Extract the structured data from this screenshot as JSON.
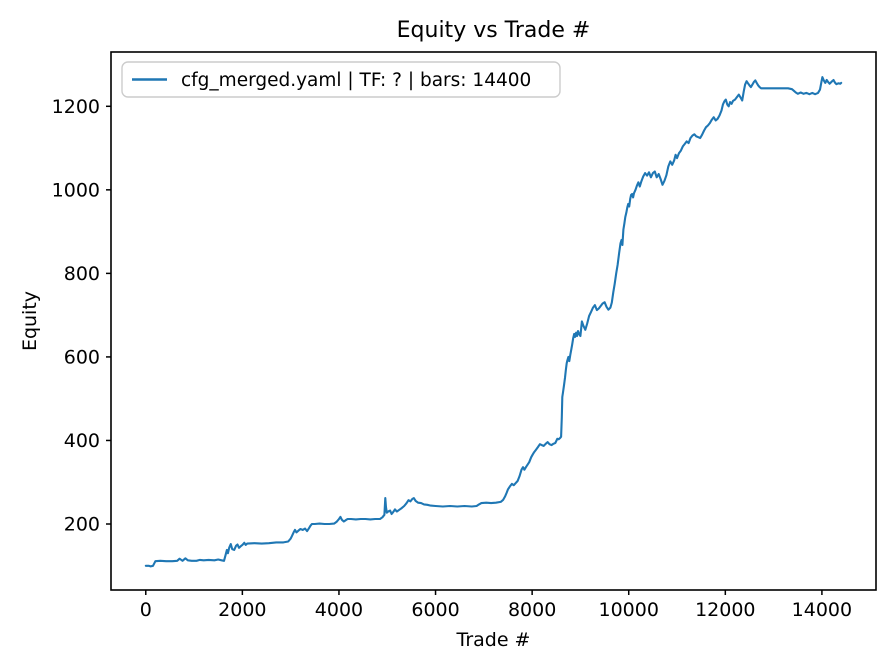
{
  "figure": {
    "background": "#ffffff",
    "spine_color": "#000000",
    "text_color": "#000000"
  },
  "legend": {
    "label": "cfg_merged.yaml | TF: ? | bars: 14400",
    "border_color": "#cccccc",
    "fill_color": "#ffffff",
    "position": "upper left"
  },
  "chart_data": {
    "type": "line",
    "title": "Equity vs Trade #",
    "xlabel": "Trade #",
    "ylabel": "Equity",
    "xlim": [
      -720,
      15120
    ],
    "ylim": [
      42,
      1330
    ],
    "xticks": [
      0,
      2000,
      4000,
      6000,
      8000,
      10000,
      12000,
      14000
    ],
    "yticks": [
      200,
      400,
      600,
      800,
      1000,
      1200
    ],
    "grid": false,
    "legend_position": "upper left",
    "series": [
      {
        "name": "cfg_merged.yaml | TF: ? | bars: 14400",
        "color": "#1f77b4",
        "line_width": 2.1,
        "points": [
          [
            0,
            100
          ],
          [
            60,
            100
          ],
          [
            100,
            98.5
          ],
          [
            150,
            100
          ],
          [
            200,
            111
          ],
          [
            300,
            112
          ],
          [
            420,
            111
          ],
          [
            550,
            111
          ],
          [
            650,
            112
          ],
          [
            700,
            117
          ],
          [
            760,
            112
          ],
          [
            820,
            118
          ],
          [
            870,
            113
          ],
          [
            950,
            112
          ],
          [
            1050,
            112
          ],
          [
            1120,
            114
          ],
          [
            1200,
            113
          ],
          [
            1300,
            114
          ],
          [
            1420,
            113
          ],
          [
            1500,
            115
          ],
          [
            1570,
            113
          ],
          [
            1620,
            112
          ],
          [
            1650,
            125
          ],
          [
            1680,
            138
          ],
          [
            1700,
            130
          ],
          [
            1730,
            144
          ],
          [
            1760,
            152
          ],
          [
            1790,
            140
          ],
          [
            1830,
            138
          ],
          [
            1870,
            148
          ],
          [
            1900,
            151
          ],
          [
            1930,
            143
          ],
          [
            1970,
            147
          ],
          [
            2000,
            150
          ],
          [
            2040,
            155
          ],
          [
            2070,
            150
          ],
          [
            2100,
            153
          ],
          [
            2250,
            154
          ],
          [
            2400,
            153
          ],
          [
            2550,
            154
          ],
          [
            2700,
            156
          ],
          [
            2850,
            156
          ],
          [
            2950,
            158
          ],
          [
            3000,
            165
          ],
          [
            3030,
            172
          ],
          [
            3060,
            180
          ],
          [
            3090,
            186
          ],
          [
            3120,
            180
          ],
          [
            3160,
            184
          ],
          [
            3200,
            188
          ],
          [
            3250,
            186
          ],
          [
            3300,
            189
          ],
          [
            3340,
            183
          ],
          [
            3380,
            190
          ],
          [
            3410,
            196
          ],
          [
            3440,
            200
          ],
          [
            3500,
            200
          ],
          [
            3600,
            201
          ],
          [
            3700,
            200
          ],
          [
            3800,
            200
          ],
          [
            3900,
            201
          ],
          [
            3950,
            205
          ],
          [
            4000,
            212
          ],
          [
            4030,
            217
          ],
          [
            4060,
            210
          ],
          [
            4100,
            206
          ],
          [
            4140,
            209
          ],
          [
            4180,
            212
          ],
          [
            4250,
            212
          ],
          [
            4350,
            211
          ],
          [
            4450,
            212
          ],
          [
            4550,
            212
          ],
          [
            4650,
            211
          ],
          [
            4750,
            212
          ],
          [
            4850,
            212
          ],
          [
            4900,
            216
          ],
          [
            4940,
            222
          ],
          [
            4960,
            262
          ],
          [
            4975,
            240
          ],
          [
            4990,
            227
          ],
          [
            5020,
            230
          ],
          [
            5060,
            232
          ],
          [
            5090,
            224
          ],
          [
            5120,
            228
          ],
          [
            5160,
            235
          ],
          [
            5200,
            230
          ],
          [
            5250,
            234
          ],
          [
            5300,
            238
          ],
          [
            5350,
            243
          ],
          [
            5400,
            250
          ],
          [
            5440,
            257
          ],
          [
            5480,
            254
          ],
          [
            5520,
            260
          ],
          [
            5550,
            262
          ],
          [
            5590,
            255
          ],
          [
            5640,
            251
          ],
          [
            5700,
            250
          ],
          [
            5760,
            247
          ],
          [
            5830,
            246
          ],
          [
            5900,
            244
          ],
          [
            6000,
            243
          ],
          [
            6150,
            242
          ],
          [
            6300,
            243
          ],
          [
            6450,
            242
          ],
          [
            6600,
            243
          ],
          [
            6750,
            242
          ],
          [
            6850,
            243
          ],
          [
            6900,
            247
          ],
          [
            6950,
            250
          ],
          [
            7050,
            251
          ],
          [
            7150,
            250
          ],
          [
            7250,
            251
          ],
          [
            7350,
            253
          ],
          [
            7400,
            258
          ],
          [
            7440,
            266
          ],
          [
            7470,
            274
          ],
          [
            7500,
            283
          ],
          [
            7540,
            290
          ],
          [
            7580,
            296
          ],
          [
            7620,
            293
          ],
          [
            7660,
            298
          ],
          [
            7700,
            303
          ],
          [
            7740,
            315
          ],
          [
            7780,
            330
          ],
          [
            7810,
            336
          ],
          [
            7840,
            330
          ],
          [
            7870,
            336
          ],
          [
            7900,
            341
          ],
          [
            7940,
            348
          ],
          [
            7980,
            360
          ],
          [
            8010,
            366
          ],
          [
            8040,
            372
          ],
          [
            8080,
            378
          ],
          [
            8120,
            384
          ],
          [
            8160,
            391
          ],
          [
            8200,
            389
          ],
          [
            8240,
            387
          ],
          [
            8280,
            392
          ],
          [
            8320,
            396
          ],
          [
            8360,
            391
          ],
          [
            8400,
            389
          ],
          [
            8440,
            392
          ],
          [
            8480,
            394
          ],
          [
            8520,
            404
          ],
          [
            8550,
            403
          ],
          [
            8580,
            406
          ],
          [
            8600,
            409
          ],
          [
            8615,
            455
          ],
          [
            8625,
            504
          ],
          [
            8640,
            515
          ],
          [
            8660,
            532
          ],
          [
            8680,
            550
          ],
          [
            8700,
            570
          ],
          [
            8715,
            585
          ],
          [
            8730,
            592
          ],
          [
            8750,
            600
          ],
          [
            8770,
            590
          ],
          [
            8790,
            605
          ],
          [
            8810,
            618
          ],
          [
            8830,
            630
          ],
          [
            8850,
            645
          ],
          [
            8870,
            655
          ],
          [
            8890,
            648
          ],
          [
            8910,
            658
          ],
          [
            8930,
            650
          ],
          [
            8950,
            662
          ],
          [
            8970,
            655
          ],
          [
            9000,
            650
          ],
          [
            9030,
            685
          ],
          [
            9060,
            675
          ],
          [
            9100,
            665
          ],
          [
            9140,
            680
          ],
          [
            9180,
            698
          ],
          [
            9220,
            708
          ],
          [
            9260,
            718
          ],
          [
            9300,
            724
          ],
          [
            9340,
            712
          ],
          [
            9380,
            716
          ],
          [
            9420,
            722
          ],
          [
            9460,
            728
          ],
          [
            9500,
            731
          ],
          [
            9540,
            720
          ],
          [
            9580,
            713
          ],
          [
            9620,
            718
          ],
          [
            9650,
            730
          ],
          [
            9680,
            755
          ],
          [
            9710,
            775
          ],
          [
            9740,
            800
          ],
          [
            9770,
            820
          ],
          [
            9800,
            848
          ],
          [
            9830,
            872
          ],
          [
            9850,
            880
          ],
          [
            9870,
            868
          ],
          [
            9890,
            905
          ],
          [
            9910,
            920
          ],
          [
            9930,
            935
          ],
          [
            9950,
            945
          ],
          [
            9970,
            958
          ],
          [
            9990,
            966
          ],
          [
            10010,
            960
          ],
          [
            10030,
            978
          ],
          [
            10050,
            988
          ],
          [
            10070,
            990
          ],
          [
            10090,
            982
          ],
          [
            10110,
            992
          ],
          [
            10140,
            1000
          ],
          [
            10170,
            1010
          ],
          [
            10200,
            1018
          ],
          [
            10230,
            1008
          ],
          [
            10260,
            1020
          ],
          [
            10300,
            1032
          ],
          [
            10340,
            1040
          ],
          [
            10380,
            1034
          ],
          [
            10420,
            1042
          ],
          [
            10460,
            1030
          ],
          [
            10500,
            1040
          ],
          [
            10540,
            1044
          ],
          [
            10580,
            1030
          ],
          [
            10620,
            1038
          ],
          [
            10660,
            1026
          ],
          [
            10700,
            1012
          ],
          [
            10740,
            1022
          ],
          [
            10780,
            1035
          ],
          [
            10820,
            1056
          ],
          [
            10860,
            1068
          ],
          [
            10900,
            1060
          ],
          [
            10940,
            1070
          ],
          [
            10970,
            1084
          ],
          [
            11000,
            1076
          ],
          [
            11040,
            1088
          ],
          [
            11080,
            1094
          ],
          [
            11120,
            1104
          ],
          [
            11160,
            1110
          ],
          [
            11200,
            1116
          ],
          [
            11240,
            1112
          ],
          [
            11280,
            1124
          ],
          [
            11320,
            1130
          ],
          [
            11360,
            1133
          ],
          [
            11400,
            1128
          ],
          [
            11440,
            1126
          ],
          [
            11480,
            1124
          ],
          [
            11520,
            1132
          ],
          [
            11560,
            1142
          ],
          [
            11600,
            1150
          ],
          [
            11640,
            1154
          ],
          [
            11680,
            1160
          ],
          [
            11720,
            1168
          ],
          [
            11760,
            1174
          ],
          [
            11800,
            1166
          ],
          [
            11840,
            1170
          ],
          [
            11880,
            1178
          ],
          [
            11920,
            1190
          ],
          [
            11950,
            1204
          ],
          [
            11980,
            1212
          ],
          [
            12010,
            1216
          ],
          [
            12040,
            1204
          ],
          [
            12070,
            1200
          ],
          [
            12100,
            1210
          ],
          [
            12130,
            1206
          ],
          [
            12160,
            1213
          ],
          [
            12200,
            1216
          ],
          [
            12240,
            1222
          ],
          [
            12280,
            1228
          ],
          [
            12320,
            1220
          ],
          [
            12350,
            1214
          ],
          [
            12380,
            1235
          ],
          [
            12410,
            1252
          ],
          [
            12440,
            1260
          ],
          [
            12470,
            1255
          ],
          [
            12500,
            1250
          ],
          [
            12530,
            1246
          ],
          [
            12560,
            1252
          ],
          [
            12590,
            1258
          ],
          [
            12620,
            1262
          ],
          [
            12650,
            1256
          ],
          [
            12680,
            1250
          ],
          [
            12710,
            1246
          ],
          [
            12740,
            1243
          ],
          [
            12800,
            1243
          ],
          [
            12900,
            1243
          ],
          [
            13000,
            1243
          ],
          [
            13100,
            1243
          ],
          [
            13200,
            1243
          ],
          [
            13300,
            1243
          ],
          [
            13380,
            1241
          ],
          [
            13420,
            1237
          ],
          [
            13460,
            1233
          ],
          [
            13500,
            1230
          ],
          [
            13560,
            1233
          ],
          [
            13620,
            1230
          ],
          [
            13680,
            1232
          ],
          [
            13740,
            1229
          ],
          [
            13800,
            1232
          ],
          [
            13860,
            1229
          ],
          [
            13920,
            1232
          ],
          [
            13960,
            1240
          ],
          [
            13990,
            1258
          ],
          [
            14010,
            1270
          ],
          [
            14040,
            1262
          ],
          [
            14070,
            1256
          ],
          [
            14100,
            1263
          ],
          [
            14130,
            1258
          ],
          [
            14160,
            1254
          ],
          [
            14200,
            1259
          ],
          [
            14240,
            1263
          ],
          [
            14270,
            1257
          ],
          [
            14300,
            1253
          ],
          [
            14340,
            1255
          ],
          [
            14380,
            1254
          ],
          [
            14400,
            1256
          ]
        ]
      }
    ]
  }
}
